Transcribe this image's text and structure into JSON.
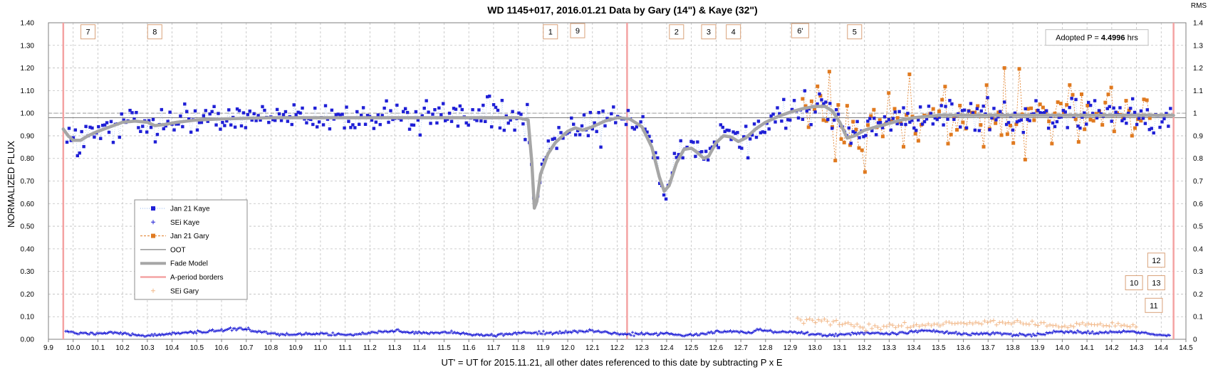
{
  "chart_data": {
    "type": "scatter",
    "title": "WD 1145+017, 2016.01.21 Data by Gary (14\") & Kaye (32\")",
    "xlabel": "UT' = UT for 2015.11.21, all other dates referenced to this date by subtracting P x E",
    "ylabel": "NORMALIZED FLUX",
    "y2label": "RMS",
    "xlim": [
      9.9,
      14.5
    ],
    "ylim": [
      0.0,
      1.4
    ],
    "x_ticks": [
      "9.9",
      "10.0",
      "10.1",
      "10.2",
      "10.3",
      "10.4",
      "10.5",
      "10.6",
      "10.7",
      "10.8",
      "10.9",
      "11.0",
      "11.1",
      "11.2",
      "11.3",
      "11.4",
      "11.5",
      "11.6",
      "11.7",
      "11.8",
      "11.9",
      "12.0",
      "12.1",
      "12.2",
      "12.3",
      "12.4",
      "12.5",
      "12.6",
      "12.7",
      "12.8",
      "12.9",
      "13.0",
      "13.1",
      "13.2",
      "13.3",
      "13.4",
      "13.5",
      "13.6",
      "13.7",
      "13.8",
      "13.9",
      "14.0",
      "14.1",
      "14.2",
      "14.3",
      "14.4",
      "14.5"
    ],
    "y_ticks": [
      "0.00",
      "0.10",
      "0.20",
      "0.30",
      "0.40",
      "0.50",
      "0.60",
      "0.70",
      "0.80",
      "0.90",
      "1.00",
      "1.10",
      "1.20",
      "1.30",
      "1.40"
    ],
    "y2_ticks": [
      "0",
      "0.1",
      "0.2",
      "0.3",
      "0.4",
      "0.5",
      "0.6",
      "0.7",
      "0.8",
      "0.9",
      "1",
      "1.1",
      "1.2",
      "1.3",
      "1.4"
    ],
    "grid": true,
    "legend_position": "left-middle",
    "legend": [
      {
        "label": "Jan 21 Kaye",
        "kind": "square-dotted",
        "color": "#1f1fd6"
      },
      {
        "label": "SEi Kaye",
        "kind": "plus",
        "color": "#1f1fd6"
      },
      {
        "label": "Jan 21 Gary",
        "kind": "square-dashed",
        "color": "#e07a20"
      },
      {
        "label": "OOT",
        "kind": "line",
        "color": "#808080"
      },
      {
        "label": "Fade Model",
        "kind": "thick-line",
        "color": "#a6a6a6"
      },
      {
        "label": "A-period borders",
        "kind": "line",
        "color": "#f4a3a3"
      },
      {
        "label": "SEi Gary",
        "kind": "plus",
        "color": "#f2b98a"
      }
    ],
    "oot_level": 0.98,
    "reference_line": 1.0,
    "adopted_period": {
      "prefix": "Adopted P = ",
      "value": "4.4996",
      "unit": " hrs"
    },
    "a_period_borders": [
      9.96,
      12.24,
      14.45
    ],
    "fade_model": [
      [
        9.96,
        0.93
      ],
      [
        9.98,
        0.9
      ],
      [
        10.0,
        0.88
      ],
      [
        10.03,
        0.88
      ],
      [
        10.06,
        0.9
      ],
      [
        10.1,
        0.92
      ],
      [
        10.15,
        0.94
      ],
      [
        10.2,
        0.96
      ],
      [
        10.25,
        0.965
      ],
      [
        10.3,
        0.96
      ],
      [
        10.33,
        0.945
      ],
      [
        10.37,
        0.95
      ],
      [
        10.42,
        0.96
      ],
      [
        10.5,
        0.97
      ],
      [
        10.6,
        0.975
      ],
      [
        10.8,
        0.98
      ],
      [
        11.8,
        0.98
      ],
      [
        11.84,
        0.97
      ],
      [
        11.855,
        0.78
      ],
      [
        11.865,
        0.58
      ],
      [
        11.875,
        0.61
      ],
      [
        11.89,
        0.73
      ],
      [
        11.92,
        0.82
      ],
      [
        11.95,
        0.87
      ],
      [
        11.98,
        0.9
      ],
      [
        12.0,
        0.92
      ],
      [
        12.03,
        0.935
      ],
      [
        12.06,
        0.925
      ],
      [
        12.1,
        0.94
      ],
      [
        12.15,
        0.965
      ],
      [
        12.2,
        0.98
      ],
      [
        12.25,
        0.975
      ],
      [
        12.3,
        0.94
      ],
      [
        12.34,
        0.85
      ],
      [
        12.37,
        0.72
      ],
      [
        12.39,
        0.655
      ],
      [
        12.41,
        0.68
      ],
      [
        12.44,
        0.78
      ],
      [
        12.47,
        0.84
      ],
      [
        12.5,
        0.845
      ],
      [
        12.52,
        0.83
      ],
      [
        12.55,
        0.8
      ],
      [
        12.57,
        0.81
      ],
      [
        12.6,
        0.87
      ],
      [
        12.63,
        0.9
      ],
      [
        12.66,
        0.895
      ],
      [
        12.69,
        0.875
      ],
      [
        12.72,
        0.89
      ],
      [
        12.76,
        0.93
      ],
      [
        12.8,
        0.96
      ],
      [
        12.85,
        0.985
      ],
      [
        12.9,
        1.005
      ],
      [
        12.95,
        1.02
      ],
      [
        13.0,
        1.03
      ],
      [
        13.04,
        1.03
      ],
      [
        13.07,
        1.01
      ],
      [
        13.1,
        0.96
      ],
      [
        13.13,
        0.89
      ],
      [
        13.16,
        0.9
      ],
      [
        13.2,
        0.925
      ],
      [
        13.25,
        0.94
      ],
      [
        13.3,
        0.955
      ],
      [
        13.35,
        0.97
      ],
      [
        13.4,
        0.98
      ],
      [
        13.5,
        0.99
      ],
      [
        14.45,
        0.99
      ]
    ],
    "annotations": [
      {
        "text": "7",
        "x": 10.06,
        "y": 1.36
      },
      {
        "text": "8",
        "x": 10.33,
        "y": 1.36
      },
      {
        "text": "1",
        "x": 11.93,
        "y": 1.36
      },
      {
        "text": "9",
        "x": 12.04,
        "y": 1.365
      },
      {
        "text": "2",
        "x": 12.44,
        "y": 1.36
      },
      {
        "text": "3",
        "x": 12.57,
        "y": 1.36
      },
      {
        "text": "4",
        "x": 12.67,
        "y": 1.36
      },
      {
        "text": "6'",
        "x": 12.94,
        "y": 1.365
      },
      {
        "text": "5",
        "x": 13.16,
        "y": 1.36
      },
      {
        "text": "12",
        "x": 14.38,
        "y": 0.35
      },
      {
        "text": "10",
        "x": 14.29,
        "y": 0.25
      },
      {
        "text": "13",
        "x": 14.38,
        "y": 0.25
      },
      {
        "text": "11",
        "x": 14.37,
        "y": 0.15
      }
    ]
  },
  "colors": {
    "kaye": "#1f1fd6",
    "gary": "#e07a20",
    "gary_sei": "#f2b98a",
    "fade_model": "#a6a6a6",
    "oot": "#808080",
    "border": "#f4a3a3",
    "grid": "#bfbfbf"
  }
}
